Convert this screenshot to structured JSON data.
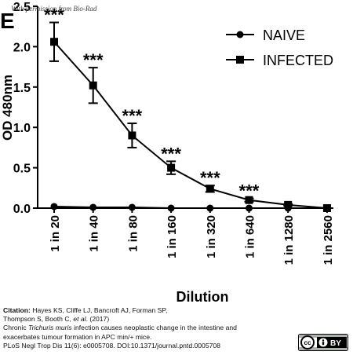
{
  "chart_data": {
    "type": "line",
    "panel_label": "E",
    "ylabel": "OD 480nm",
    "xlabel": "Dilution",
    "categories": [
      "1 in 20",
      "1 in 40",
      "1 in 80",
      "1 in 160",
      "1 in 320",
      "1 in 640",
      "1 in 1280",
      "1 in 2560"
    ],
    "y_ticks": [
      "0.0",
      "0.5",
      "1.0",
      "1.5",
      "2.0",
      "2.5"
    ],
    "ylim": [
      0,
      2.5
    ],
    "legend_position": "top-right",
    "series": [
      {
        "name": "NAIVE",
        "marker": "circle",
        "values": [
          0.02,
          0.01,
          0.01,
          0.0,
          0.0,
          0.0,
          0.0,
          0.0
        ],
        "errors": [
          0,
          0,
          0,
          0,
          0,
          0,
          0,
          0
        ]
      },
      {
        "name": "INFECTED",
        "marker": "square",
        "values": [
          2.06,
          1.52,
          0.9,
          0.5,
          0.24,
          0.1,
          0.04,
          0.0
        ],
        "errors": [
          0.24,
          0.22,
          0.15,
          0.08,
          0.04,
          0.02,
          0.01,
          0.0
        ]
      }
    ],
    "significance": [
      "***",
      "***",
      "***",
      "***",
      "***",
      "***",
      "",
      ""
    ]
  },
  "watermark": "With permission from Bio-Rad",
  "citation": {
    "label": "Citation:",
    "line1": " Hayes KS, Cliffe LJ, Bancroft AJ, Forman SP,",
    "line2a": "Thompson S, Booth C, ",
    "line2b": "et al",
    "line2c": ". (2017)",
    "line3a": "Chronic ",
    "line3b": "Trichuris muris",
    "line3c": " infection causes neoplastic change in the intestine and",
    "line4": "exacerbates tumour formation in APC min/+ mice.",
    "line5": "PLoS Negl Trop Dis 11(6): e0005708. DOI:10.1371/journal.pntd.0005708"
  },
  "license": {
    "cc": "cc",
    "by": "BY"
  }
}
